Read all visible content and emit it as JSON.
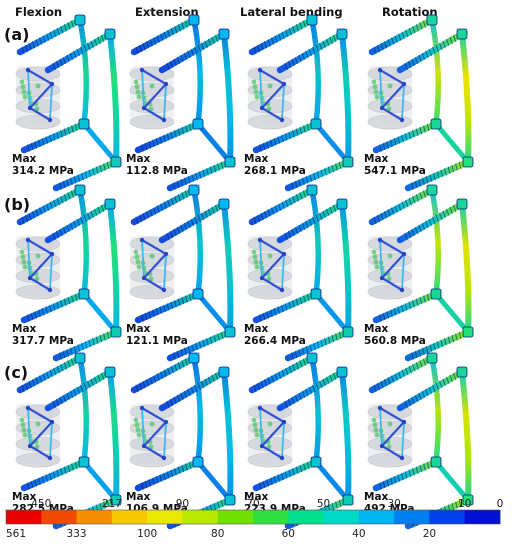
{
  "columns": [
    "Flexion",
    "Extension",
    "Lateral bending",
    "Rotation"
  ],
  "rows": [
    {
      "label": "(a)",
      "panels": [
        {
          "max_label": "Max",
          "max_value": "314.2 MPa",
          "rod_level": 0.45,
          "screw_level": 0.2
        },
        {
          "max_label": "Max",
          "max_value": "112.8 MPa",
          "rod_level": 0.3,
          "screw_level": 0.15
        },
        {
          "max_label": "Max",
          "max_value": "268.1 MPa",
          "rod_level": 0.35,
          "screw_level": 0.2
        },
        {
          "max_label": "Max",
          "max_value": "547.1 MPa",
          "rod_level": 0.78,
          "screw_level": 0.3
        }
      ]
    },
    {
      "label": "(b)",
      "panels": [
        {
          "max_label": "Max",
          "max_value": "317.7 MPa",
          "rod_level": 0.45,
          "screw_level": 0.2
        },
        {
          "max_label": "Max",
          "max_value": "121.1 MPa",
          "rod_level": 0.35,
          "screw_level": 0.15
        },
        {
          "max_label": "Max",
          "max_value": "266.4 MPa",
          "rod_level": 0.38,
          "screw_level": 0.2
        },
        {
          "max_label": "Max",
          "max_value": "560.8 MPa",
          "rod_level": 0.75,
          "screw_level": 0.3
        }
      ]
    },
    {
      "label": "(c)",
      "panels": [
        {
          "max_label": "Max",
          "max_value": "282.5 MPa",
          "rod_level": 0.42,
          "screw_level": 0.2
        },
        {
          "max_label": "Max",
          "max_value": "106.9 MPa",
          "rod_level": 0.3,
          "screw_level": 0.15
        },
        {
          "max_label": "Max",
          "max_value": "223.9 MPa",
          "rod_level": 0.33,
          "screw_level": 0.2
        },
        {
          "max_label": "Max",
          "max_value": "492 MPa",
          "rod_level": 0.72,
          "screw_level": 0.3
        }
      ]
    }
  ],
  "color_scale": {
    "colors": [
      "#e60000",
      "#f04a00",
      "#f78e00",
      "#f8c800",
      "#e8e800",
      "#b8ea00",
      "#6fe000",
      "#2fe040",
      "#00e08c",
      "#00d8c8",
      "#00b4f0",
      "#0080f0",
      "#0040e8",
      "#0010d0"
    ],
    "labels_top": [
      "450",
      "217",
      "90",
      "70",
      "50",
      "30",
      "10",
      "0"
    ],
    "labels_bottom": [
      "561",
      "333",
      "100",
      "80",
      "60",
      "40",
      "20"
    ]
  },
  "palette": {
    "vertebra_fill": "#c9ccd2",
    "vertebra_stroke": "#aeb2ba",
    "mesh_green": "#34c15a",
    "cage": "#7fd0ff"
  }
}
